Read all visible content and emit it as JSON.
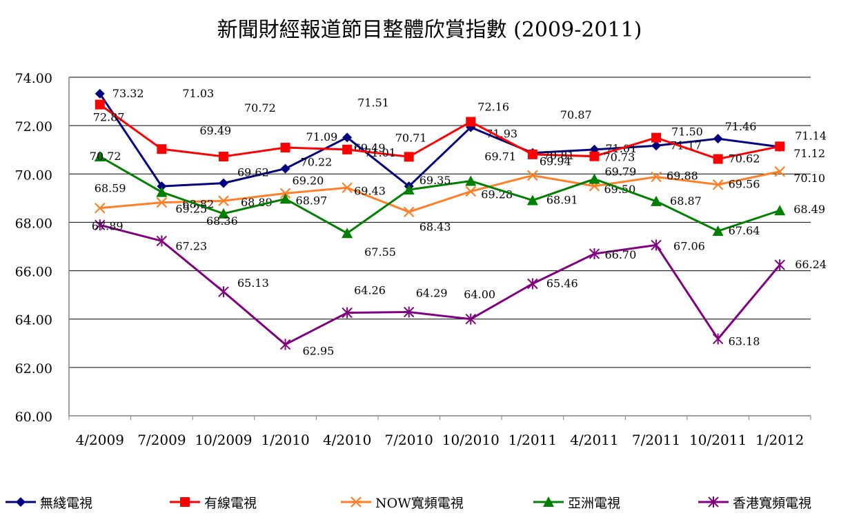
{
  "chart_data": {
    "type": "line",
    "title": "新聞財經報道節目整體欣賞指數 (2009-2011)",
    "xlabel": "",
    "ylabel": "",
    "ylim": [
      60,
      74
    ],
    "yticks": [
      "60.00",
      "62.00",
      "64.00",
      "66.00",
      "68.00",
      "70.00",
      "72.00",
      "74.00"
    ],
    "categories": [
      "4/2009",
      "7/2009",
      "10/2009",
      "1/2010",
      "4/2010",
      "7/2010",
      "10/2010",
      "1/2011",
      "4/2011",
      "7/2011",
      "10/2011",
      "1/2012"
    ],
    "grid": "horizontal",
    "legend_position": "bottom",
    "series": [
      {
        "name": "無綫電視",
        "color": "#000080",
        "marker": "diamond",
        "values": [
          73.32,
          69.49,
          69.62,
          70.22,
          71.51,
          69.49,
          71.93,
          70.87,
          71.01,
          71.17,
          71.46,
          71.12
        ],
        "labels": [
          "73.32",
          "69.49",
          "69.62",
          "70.22",
          "71.51",
          "69.49",
          "71.93",
          "70.87",
          "71.01",
          "71.17",
          "71.46",
          "71.12"
        ]
      },
      {
        "name": "有線電視",
        "color": "#ff0000",
        "marker": "square",
        "values": [
          72.87,
          71.03,
          70.72,
          71.09,
          71.01,
          70.71,
          72.16,
          70.81,
          70.73,
          71.5,
          70.62,
          71.14
        ],
        "labels": [
          "72.87",
          "71.03",
          "70.72",
          "71.09",
          "71.01",
          "70.71",
          "72.16",
          "70.81",
          "70.73",
          "71.50",
          "70.62",
          "71.14"
        ]
      },
      {
        "name": "NOW寬頻電視",
        "color": "#ff7f27",
        "marker": "x",
        "values": [
          68.59,
          68.82,
          68.89,
          69.2,
          69.43,
          68.43,
          69.28,
          69.94,
          69.5,
          69.88,
          69.56,
          70.1
        ],
        "labels": [
          "68.59",
          "68.82",
          "68.89",
          "69.20",
          "69.43",
          "68.43",
          "69.28",
          "69.94",
          "69.50",
          "69.88",
          "69.56",
          "70.10"
        ]
      },
      {
        "name": "亞洲電視",
        "color": "#007f00",
        "marker": "triangle",
        "values": [
          70.72,
          69.25,
          68.36,
          68.97,
          67.55,
          69.35,
          69.71,
          68.91,
          69.79,
          68.87,
          67.64,
          68.49
        ],
        "labels": [
          "70.72",
          "69.25",
          "68.36",
          "68.97",
          "67.55",
          "69.35",
          "69.71",
          "68.91",
          "69.79",
          "68.87",
          "67.64",
          "68.49"
        ]
      },
      {
        "name": "香港寬頻電視",
        "color": "#800080",
        "marker": "asterisk",
        "values": [
          67.89,
          67.23,
          65.13,
          62.95,
          64.26,
          64.29,
          64.0,
          65.46,
          66.7,
          67.06,
          63.18,
          66.24
        ],
        "labels": [
          "67.89",
          "67.23",
          "65.13",
          "62.95",
          "64.26",
          "64.29",
          "64.00",
          "65.46",
          "66.70",
          "67.06",
          "63.18",
          "66.24"
        ]
      }
    ]
  }
}
